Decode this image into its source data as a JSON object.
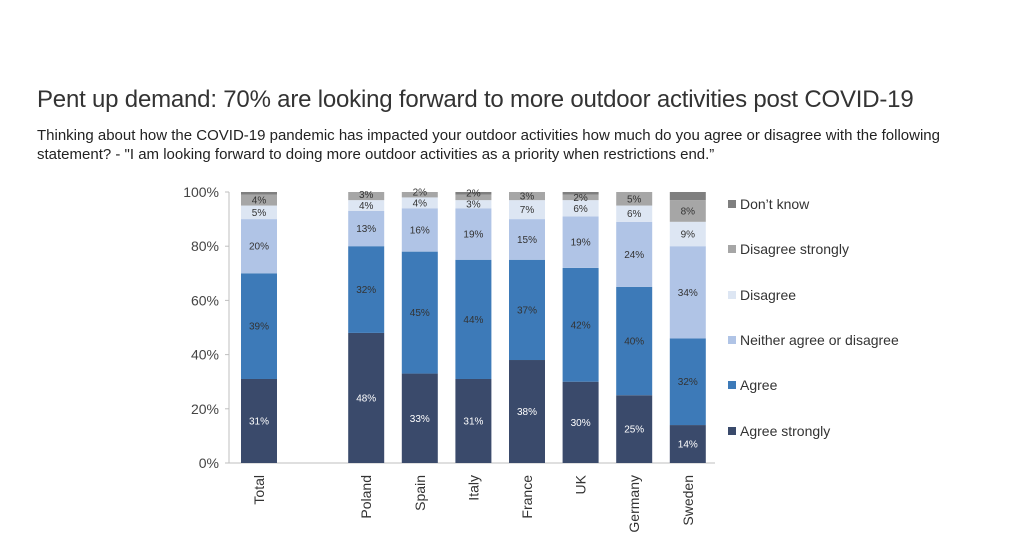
{
  "title": "Pent up demand: 70% are looking forward to more outdoor activities post COVID-19",
  "subtitle": "Thinking about how the COVID-19 pandemic has impacted your outdoor activities how much do you agree or disagree with the following statement? - \"I am looking forward to doing more outdoor activities as a priority when restrictions end.”",
  "chart_data": {
    "type": "bar",
    "stacked": true,
    "categories": [
      "Total",
      "",
      "Poland",
      "Spain",
      "Italy",
      "France",
      "UK",
      "Germany",
      "Sweden"
    ],
    "yticks": [
      "0%",
      "20%",
      "40%",
      "60%",
      "80%",
      "100%"
    ],
    "ylim": [
      0,
      100
    ],
    "legend_position": "right",
    "series": [
      {
        "name": "Agree strongly",
        "color": "#3a4a6b",
        "values": [
          31,
          null,
          48,
          33,
          31,
          38,
          30,
          25,
          14
        ],
        "labels": [
          "31%",
          null,
          "48%",
          "33%",
          "31%",
          "38%",
          "30%",
          "25%",
          "14%"
        ]
      },
      {
        "name": "Agree",
        "color": "#3d7ab8",
        "values": [
          39,
          null,
          32,
          45,
          44,
          37,
          42,
          40,
          32
        ],
        "labels": [
          "39%",
          null,
          "32%",
          "45%",
          "44%",
          "37%",
          "42%",
          "40%",
          "32%"
        ]
      },
      {
        "name": "Neither agree or disagree",
        "color": "#b0c4e6",
        "values": [
          20,
          null,
          13,
          16,
          19,
          15,
          19,
          24,
          34
        ],
        "labels": [
          "20%",
          null,
          "13%",
          "16%",
          "19%",
          "15%",
          "19%",
          "24%",
          "34%"
        ]
      },
      {
        "name": "Disagree",
        "color": "#dde6f3",
        "values": [
          5,
          null,
          4,
          4,
          3,
          7,
          6,
          6,
          9
        ],
        "labels": [
          "5%",
          null,
          "4%",
          "4%",
          "3%",
          "7%",
          "6%",
          "6%",
          "9%"
        ]
      },
      {
        "name": "Disagree strongly",
        "color": "#a6a6a6",
        "values": [
          4,
          null,
          3,
          2,
          2,
          3,
          2,
          5,
          8
        ],
        "labels": [
          "4%",
          null,
          "3%",
          "2%",
          "2%",
          "3%",
          "2%",
          "5%",
          "8%"
        ]
      },
      {
        "name": "Don’t know",
        "color": "#7f7f7f",
        "values": [
          1,
          null,
          0.5,
          0.5,
          1,
          0.5,
          1,
          0.5,
          3
        ],
        "labels": [
          null,
          null,
          null,
          null,
          null,
          null,
          null,
          null,
          null
        ]
      }
    ]
  }
}
